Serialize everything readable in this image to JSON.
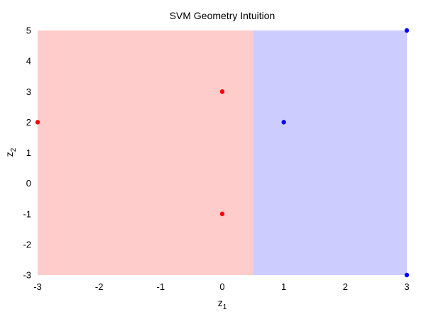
{
  "chart_data": {
    "type": "scatter",
    "title": "SVM Geometry Intuition",
    "xlabel": {
      "base": "z",
      "sub": "1"
    },
    "ylabel": {
      "base": "z",
      "sub": "2"
    },
    "xlim": [
      -3,
      3
    ],
    "ylim": [
      -3,
      5
    ],
    "xticks": [
      -3,
      -2,
      -1,
      0,
      1,
      2,
      3
    ],
    "yticks": [
      -3,
      -2,
      -1,
      0,
      1,
      2,
      3,
      4,
      5
    ],
    "grid": false,
    "regions": [
      {
        "class": "negative",
        "x_range": [
          -3,
          0.5
        ],
        "color": "#ffcccc"
      },
      {
        "class": "positive",
        "x_range": [
          0.5,
          3
        ],
        "color": "#ccccff"
      }
    ],
    "decision_boundary_x": 0.5,
    "series": [
      {
        "class": "negative",
        "color": "#ff0000",
        "points": [
          [
            -3,
            2
          ],
          [
            0,
            3
          ],
          [
            0,
            -1
          ]
        ]
      },
      {
        "class": "positive",
        "color": "#0000ff",
        "points": [
          [
            1,
            2
          ],
          [
            3,
            5
          ],
          [
            3,
            -3
          ]
        ]
      }
    ]
  }
}
